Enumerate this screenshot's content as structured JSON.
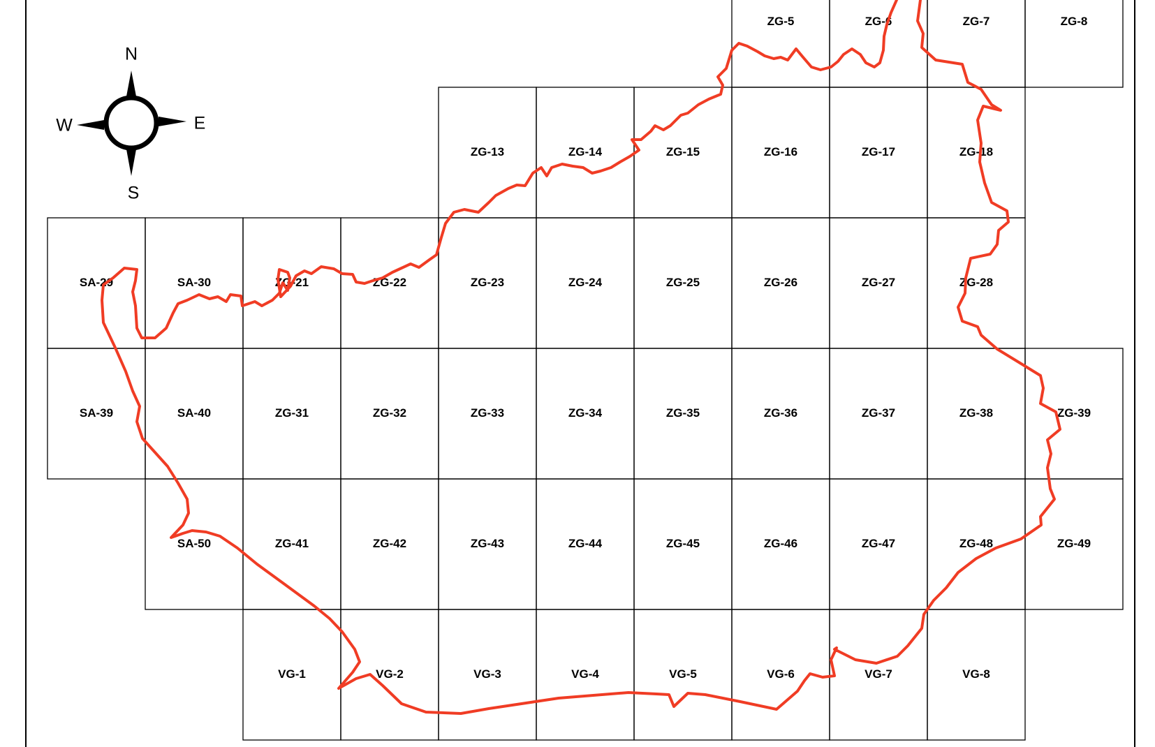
{
  "compass": {
    "north": "N",
    "south": "S",
    "east": "E",
    "west": "W",
    "icon": "compass-rose-icon"
  },
  "colors": {
    "boundary": "#F03C24",
    "grid": "#000000",
    "background": "#FFFFFF"
  },
  "grid": {
    "rows": [
      {
        "row": 0,
        "cells": [
          {
            "col": 7,
            "label": "ZG-5"
          },
          {
            "col": 8,
            "label": "ZG-6"
          },
          {
            "col": 9,
            "label": "ZG-7"
          },
          {
            "col": 10,
            "label": "ZG-8"
          }
        ]
      },
      {
        "row": 1,
        "cells": [
          {
            "col": 4,
            "label": "ZG-13"
          },
          {
            "col": 5,
            "label": "ZG-14"
          },
          {
            "col": 6,
            "label": "ZG-15"
          },
          {
            "col": 7,
            "label": "ZG-16"
          },
          {
            "col": 8,
            "label": "ZG-17"
          },
          {
            "col": 9,
            "label": "ZG-18"
          }
        ]
      },
      {
        "row": 2,
        "cells": [
          {
            "col": 0,
            "label": "SA-29"
          },
          {
            "col": 1,
            "label": "SA-30"
          },
          {
            "col": 2,
            "label": "ZG-21"
          },
          {
            "col": 3,
            "label": "ZG-22"
          },
          {
            "col": 4,
            "label": "ZG-23"
          },
          {
            "col": 5,
            "label": "ZG-24"
          },
          {
            "col": 6,
            "label": "ZG-25"
          },
          {
            "col": 7,
            "label": "ZG-26"
          },
          {
            "col": 8,
            "label": "ZG-27"
          },
          {
            "col": 9,
            "label": "ZG-28"
          }
        ]
      },
      {
        "row": 3,
        "cells": [
          {
            "col": 0,
            "label": "SA-39"
          },
          {
            "col": 1,
            "label": "SA-40"
          },
          {
            "col": 2,
            "label": "ZG-31"
          },
          {
            "col": 3,
            "label": "ZG-32"
          },
          {
            "col": 4,
            "label": "ZG-33"
          },
          {
            "col": 5,
            "label": "ZG-34"
          },
          {
            "col": 6,
            "label": "ZG-35"
          },
          {
            "col": 7,
            "label": "ZG-36"
          },
          {
            "col": 8,
            "label": "ZG-37"
          },
          {
            "col": 9,
            "label": "ZG-38"
          },
          {
            "col": 10,
            "label": "ZG-39"
          }
        ]
      },
      {
        "row": 4,
        "cells": [
          {
            "col": 1,
            "label": "SA-50"
          },
          {
            "col": 2,
            "label": "ZG-41"
          },
          {
            "col": 3,
            "label": "ZG-42"
          },
          {
            "col": 4,
            "label": "ZG-43"
          },
          {
            "col": 5,
            "label": "ZG-44"
          },
          {
            "col": 6,
            "label": "ZG-45"
          },
          {
            "col": 7,
            "label": "ZG-46"
          },
          {
            "col": 8,
            "label": "ZG-47"
          },
          {
            "col": 9,
            "label": "ZG-48"
          },
          {
            "col": 10,
            "label": "ZG-49"
          }
        ]
      },
      {
        "row": 5,
        "cells": [
          {
            "col": 2,
            "label": "VG-1"
          },
          {
            "col": 3,
            "label": "VG-2"
          },
          {
            "col": 4,
            "label": "VG-3"
          },
          {
            "col": 5,
            "label": "VG-4"
          },
          {
            "col": 6,
            "label": "VG-5"
          },
          {
            "col": 7,
            "label": "VG-6"
          },
          {
            "col": 8,
            "label": "VG-7"
          },
          {
            "col": 9,
            "label": "VG-8"
          }
        ]
      }
    ]
  }
}
